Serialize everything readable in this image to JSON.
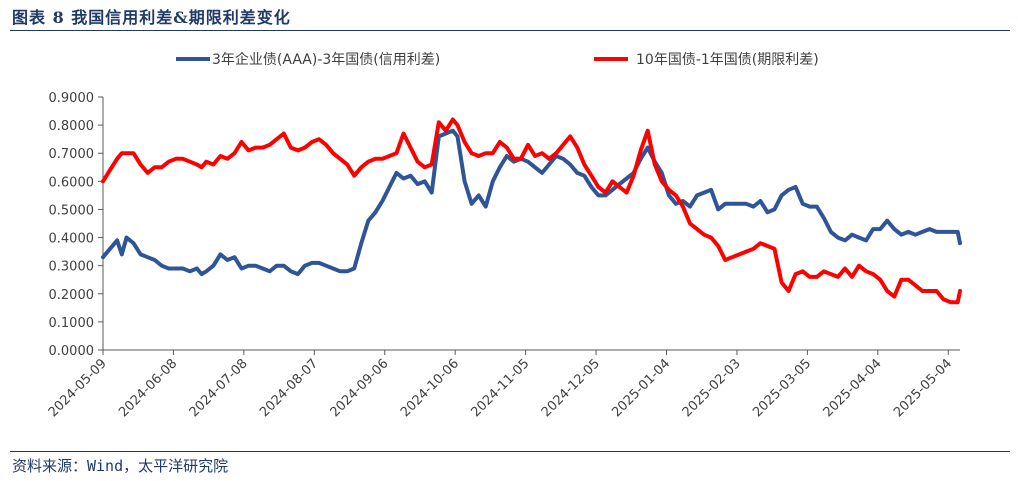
{
  "figure": {
    "title": "图表 8 我国信用利差&期限利差变化",
    "source": "资料来源：Wind，太平洋研究院"
  },
  "colors": {
    "series1": "#2f5597",
    "series2": "#ff0000",
    "axis": "#595959",
    "text": "#1f3a68"
  },
  "chart_data": {
    "type": "line",
    "title": "",
    "xlabel": "",
    "ylabel": "",
    "ylim": [
      0,
      0.9
    ],
    "ytick_step": 0.1,
    "yticks": [
      "0.0000",
      "0.1000",
      "0.2000",
      "0.3000",
      "0.4000",
      "0.5000",
      "0.6000",
      "0.7000",
      "0.8000",
      "0.9000"
    ],
    "xlim": [
      "2024-05-09",
      "2025-05-09"
    ],
    "xticks": [
      "2024-05-09",
      "2024-06-08",
      "2024-07-08",
      "2024-08-07",
      "2024-09-06",
      "2024-10-06",
      "2024-11-05",
      "2024-12-05",
      "2025-01-04",
      "2025-02-03",
      "2025-03-05",
      "2025-04-04",
      "2025-05-04"
    ],
    "legend_position": "top",
    "grid": false,
    "series": [
      {
        "name": "3年企业债(AAA)-3年国债(信用利差)",
        "x": [
          "2024-05-09",
          "2024-05-12",
          "2024-05-15",
          "2024-05-17",
          "2024-05-19",
          "2024-05-22",
          "2024-05-25",
          "2024-05-28",
          "2024-05-31",
          "2024-06-03",
          "2024-06-06",
          "2024-06-09",
          "2024-06-12",
          "2024-06-15",
          "2024-06-18",
          "2024-06-20",
          "2024-06-22",
          "2024-06-25",
          "2024-06-28",
          "2024-07-01",
          "2024-07-04",
          "2024-07-07",
          "2024-07-10",
          "2024-07-13",
          "2024-07-16",
          "2024-07-19",
          "2024-07-22",
          "2024-07-25",
          "2024-07-28",
          "2024-07-31",
          "2024-08-03",
          "2024-08-06",
          "2024-08-09",
          "2024-08-12",
          "2024-08-15",
          "2024-08-18",
          "2024-08-21",
          "2024-08-24",
          "2024-08-27",
          "2024-08-30",
          "2024-09-02",
          "2024-09-05",
          "2024-09-08",
          "2024-09-11",
          "2024-09-14",
          "2024-09-17",
          "2024-09-20",
          "2024-09-23",
          "2024-09-26",
          "2024-09-29",
          "2024-10-02",
          "2024-10-05",
          "2024-10-07",
          "2024-10-10",
          "2024-10-13",
          "2024-10-16",
          "2024-10-19",
          "2024-10-22",
          "2024-10-25",
          "2024-10-28",
          "2024-10-31",
          "2024-11-03",
          "2024-11-06",
          "2024-11-09",
          "2024-11-12",
          "2024-11-15",
          "2024-11-18",
          "2024-11-21",
          "2024-11-24",
          "2024-11-27",
          "2024-11-30",
          "2024-12-03",
          "2024-12-06",
          "2024-12-09",
          "2024-12-12",
          "2024-12-15",
          "2024-12-18",
          "2024-12-21",
          "2024-12-24",
          "2024-12-27",
          "2024-12-30",
          "2025-01-02",
          "2025-01-05",
          "2025-01-08",
          "2025-01-11",
          "2025-01-14",
          "2025-01-17",
          "2025-01-20",
          "2025-01-23",
          "2025-01-26",
          "2025-01-29",
          "2025-02-01",
          "2025-02-04",
          "2025-02-07",
          "2025-02-10",
          "2025-02-13",
          "2025-02-16",
          "2025-02-19",
          "2025-02-22",
          "2025-02-25",
          "2025-02-28",
          "2025-03-03",
          "2025-03-06",
          "2025-03-09",
          "2025-03-12",
          "2025-03-15",
          "2025-03-18",
          "2025-03-21",
          "2025-03-24",
          "2025-03-27",
          "2025-03-30",
          "2025-04-02",
          "2025-04-05",
          "2025-04-08",
          "2025-04-11",
          "2025-04-14",
          "2025-04-17",
          "2025-04-20",
          "2025-04-23",
          "2025-04-26",
          "2025-04-29",
          "2025-05-02",
          "2025-05-05",
          "2025-05-08",
          "2025-05-09"
        ],
        "values": [
          0.33,
          0.36,
          0.39,
          0.34,
          0.4,
          0.38,
          0.34,
          0.33,
          0.32,
          0.3,
          0.29,
          0.29,
          0.29,
          0.28,
          0.29,
          0.27,
          0.28,
          0.3,
          0.34,
          0.32,
          0.33,
          0.29,
          0.3,
          0.3,
          0.29,
          0.28,
          0.3,
          0.3,
          0.28,
          0.27,
          0.3,
          0.31,
          0.31,
          0.3,
          0.29,
          0.28,
          0.28,
          0.29,
          0.38,
          0.46,
          0.49,
          0.53,
          0.58,
          0.63,
          0.61,
          0.62,
          0.59,
          0.6,
          0.56,
          0.76,
          0.77,
          0.78,
          0.76,
          0.6,
          0.52,
          0.55,
          0.51,
          0.6,
          0.65,
          0.69,
          0.67,
          0.68,
          0.67,
          0.65,
          0.63,
          0.66,
          0.69,
          0.68,
          0.66,
          0.63,
          0.62,
          0.58,
          0.55,
          0.55,
          0.57,
          0.59,
          0.61,
          0.63,
          0.68,
          0.72,
          0.67,
          0.63,
          0.55,
          0.52,
          0.53,
          0.51,
          0.55,
          0.56,
          0.57,
          0.5,
          0.52,
          0.52,
          0.52,
          0.52,
          0.51,
          0.53,
          0.49,
          0.5,
          0.55,
          0.57,
          0.58,
          0.52,
          0.51,
          0.51,
          0.47,
          0.42,
          0.4,
          0.39,
          0.41,
          0.4,
          0.39,
          0.43,
          0.43,
          0.46,
          0.43,
          0.41,
          0.42,
          0.41,
          0.42,
          0.43,
          0.42,
          0.42,
          0.42,
          0.42,
          0.38
        ]
      },
      {
        "name": "10年国债-1年国债(期限利差)",
        "x": [
          "2024-05-09",
          "2024-05-12",
          "2024-05-15",
          "2024-05-17",
          "2024-05-19",
          "2024-05-22",
          "2024-05-25",
          "2024-05-28",
          "2024-05-31",
          "2024-06-03",
          "2024-06-06",
          "2024-06-09",
          "2024-06-12",
          "2024-06-15",
          "2024-06-18",
          "2024-06-20",
          "2024-06-22",
          "2024-06-25",
          "2024-06-28",
          "2024-07-01",
          "2024-07-04",
          "2024-07-07",
          "2024-07-10",
          "2024-07-13",
          "2024-07-16",
          "2024-07-19",
          "2024-07-22",
          "2024-07-25",
          "2024-07-28",
          "2024-07-31",
          "2024-08-03",
          "2024-08-06",
          "2024-08-09",
          "2024-08-12",
          "2024-08-15",
          "2024-08-18",
          "2024-08-21",
          "2024-08-24",
          "2024-08-27",
          "2024-08-30",
          "2024-09-02",
          "2024-09-05",
          "2024-09-08",
          "2024-09-11",
          "2024-09-14",
          "2024-09-17",
          "2024-09-20",
          "2024-09-23",
          "2024-09-26",
          "2024-09-29",
          "2024-10-02",
          "2024-10-05",
          "2024-10-07",
          "2024-10-10",
          "2024-10-13",
          "2024-10-16",
          "2024-10-19",
          "2024-10-22",
          "2024-10-25",
          "2024-10-28",
          "2024-10-31",
          "2024-11-03",
          "2024-11-06",
          "2024-11-09",
          "2024-11-12",
          "2024-11-15",
          "2024-11-18",
          "2024-11-21",
          "2024-11-24",
          "2024-11-27",
          "2024-11-30",
          "2024-12-03",
          "2024-12-06",
          "2024-12-09",
          "2024-12-12",
          "2024-12-15",
          "2024-12-18",
          "2024-12-21",
          "2024-12-24",
          "2024-12-27",
          "2024-12-30",
          "2025-01-02",
          "2025-01-05",
          "2025-01-08",
          "2025-01-11",
          "2025-01-14",
          "2025-01-17",
          "2025-01-20",
          "2025-01-23",
          "2025-01-26",
          "2025-01-29",
          "2025-02-01",
          "2025-02-04",
          "2025-02-07",
          "2025-02-10",
          "2025-02-13",
          "2025-02-16",
          "2025-02-19",
          "2025-02-22",
          "2025-02-25",
          "2025-02-28",
          "2025-03-03",
          "2025-03-06",
          "2025-03-09",
          "2025-03-12",
          "2025-03-15",
          "2025-03-18",
          "2025-03-21",
          "2025-03-24",
          "2025-03-27",
          "2025-03-30",
          "2025-04-02",
          "2025-04-05",
          "2025-04-08",
          "2025-04-11",
          "2025-04-14",
          "2025-04-17",
          "2025-04-20",
          "2025-04-23",
          "2025-04-26",
          "2025-04-29",
          "2025-05-02",
          "2025-05-05",
          "2025-05-08",
          "2025-05-09"
        ],
        "values": [
          0.6,
          0.64,
          0.68,
          0.7,
          0.7,
          0.7,
          0.66,
          0.63,
          0.65,
          0.65,
          0.67,
          0.68,
          0.68,
          0.67,
          0.66,
          0.65,
          0.67,
          0.66,
          0.69,
          0.68,
          0.7,
          0.74,
          0.71,
          0.72,
          0.72,
          0.73,
          0.75,
          0.77,
          0.72,
          0.71,
          0.72,
          0.74,
          0.75,
          0.73,
          0.7,
          0.68,
          0.66,
          0.62,
          0.65,
          0.67,
          0.68,
          0.68,
          0.69,
          0.7,
          0.77,
          0.72,
          0.67,
          0.65,
          0.66,
          0.81,
          0.78,
          0.82,
          0.8,
          0.74,
          0.7,
          0.69,
          0.7,
          0.7,
          0.74,
          0.72,
          0.68,
          0.68,
          0.73,
          0.69,
          0.7,
          0.68,
          0.7,
          0.73,
          0.76,
          0.72,
          0.66,
          0.62,
          0.58,
          0.56,
          0.6,
          0.58,
          0.56,
          0.62,
          0.71,
          0.78,
          0.66,
          0.6,
          0.57,
          0.55,
          0.51,
          0.45,
          0.43,
          0.41,
          0.4,
          0.37,
          0.32,
          0.33,
          0.34,
          0.35,
          0.36,
          0.38,
          0.37,
          0.36,
          0.24,
          0.21,
          0.27,
          0.28,
          0.26,
          0.26,
          0.28,
          0.27,
          0.26,
          0.29,
          0.26,
          0.3,
          0.28,
          0.27,
          0.25,
          0.21,
          0.19,
          0.25,
          0.25,
          0.23,
          0.21,
          0.21,
          0.21,
          0.18,
          0.17,
          0.17,
          0.21
        ]
      }
    ]
  }
}
